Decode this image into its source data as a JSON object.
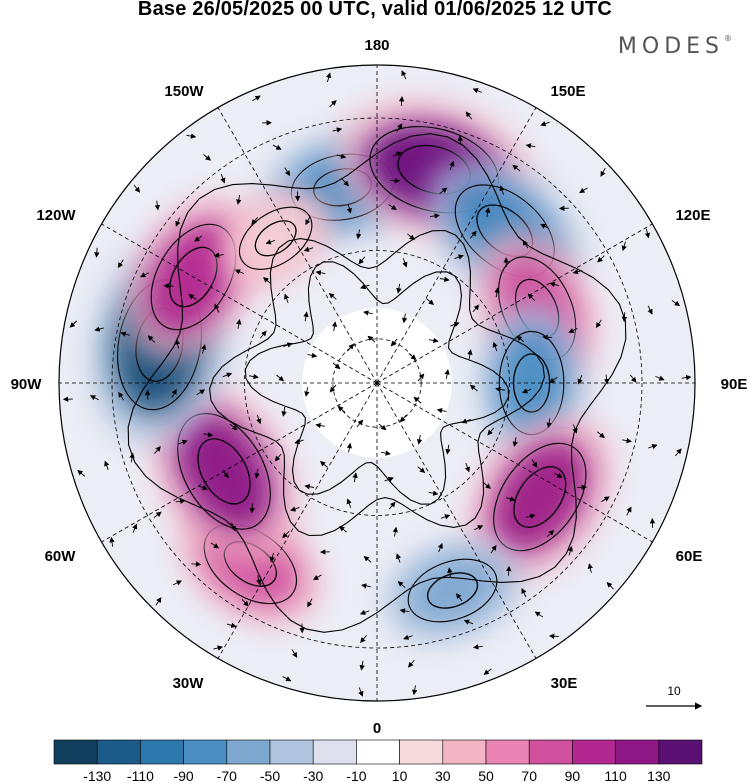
{
  "title": "Base 26/05/2025 00 UTC, valid 01/06/2025 12 UTC",
  "brand": "MODES",
  "brand_mark": "®",
  "longitude_labels": {
    "top": "180",
    "bottom": "0",
    "left": "90W",
    "right": "90E",
    "upper_left_1": "150W",
    "upper_left_2": "120W",
    "upper_right_1": "150E",
    "upper_right_2": "120E",
    "lower_left_1": "60W",
    "lower_left_2": "30W",
    "lower_right_1": "60E",
    "lower_right_2": "30E"
  },
  "reference_vector": {
    "label": "10"
  },
  "map_data": {
    "projection": "north polar stereographic",
    "field": "shaded anomaly with streamlines and wind vectors",
    "anomaly_centers": [
      {
        "lon": -170,
        "lat": 45,
        "value": -70,
        "color": "#4a8ec4"
      },
      {
        "lon": 165,
        "lat": 40,
        "value": 120,
        "color": "#6c0f7e"
      },
      {
        "lon": 140,
        "lat": 45,
        "value": -90,
        "color": "#3f86bf"
      },
      {
        "lon": 115,
        "lat": 50,
        "value": 80,
        "color": "#d0519e"
      },
      {
        "lon": 90,
        "lat": 55,
        "value": -70,
        "color": "#4a8ec4"
      },
      {
        "lon": 55,
        "lat": 45,
        "value": 100,
        "color": "#9c1c86"
      },
      {
        "lon": 20,
        "lat": 40,
        "value": -50,
        "color": "#7fa8d1"
      },
      {
        "lon": -35,
        "lat": 40,
        "value": 70,
        "color": "#d0519e"
      },
      {
        "lon": -60,
        "lat": 50,
        "value": 110,
        "color": "#8c1785"
      },
      {
        "lon": -100,
        "lat": 40,
        "value": -120,
        "color": "#164d78"
      },
      {
        "lon": -120,
        "lat": 42,
        "value": 90,
        "color": "#b32890"
      },
      {
        "lon": -145,
        "lat": 50,
        "value": 30,
        "color": "#f4cfd6"
      }
    ]
  },
  "colorbar": {
    "labels": [
      "-130",
      "-110",
      "-90",
      "-70",
      "-50",
      "-30",
      "-10",
      "10",
      "30",
      "50",
      "70",
      "90",
      "110",
      "130"
    ],
    "colors": [
      "#11405f",
      "#1a5c87",
      "#2d78ad",
      "#4a8ec4",
      "#7fa8d1",
      "#b0c3df",
      "#dfe0ee",
      "#ffffff",
      "#f7dbdd",
      "#f3b5c6",
      "#ea84b5",
      "#d0519e",
      "#b32890",
      "#8c1785",
      "#5a1073"
    ]
  }
}
